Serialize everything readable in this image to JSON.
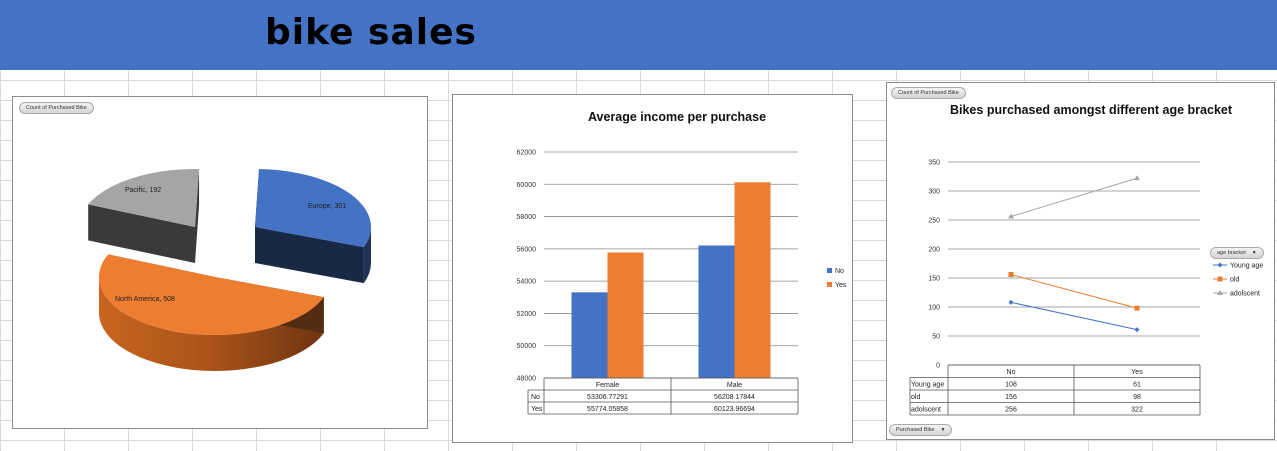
{
  "page": {
    "title": "bike sales"
  },
  "colors": {
    "blue": "#4472c4",
    "orange": "#ed7d31",
    "gray": "#a5a5a5"
  },
  "pie_panel": {
    "field_button": "Count of Purchased Bike"
  },
  "line_panel": {
    "field_button": "Count of Purchased Bike",
    "legend_button": "age bracket",
    "axis_button": "Purchased Bike"
  },
  "chart_data": [
    {
      "type": "pie",
      "title": "",
      "slices": [
        {
          "label": "Europe",
          "value": 301,
          "color": "#4472c4",
          "text": "Europe, 301"
        },
        {
          "label": "North America",
          "value": 508,
          "color": "#ed7d31",
          "text": "North America, 508"
        },
        {
          "label": "Pacific",
          "value": 192,
          "color": "#a5a5a5",
          "text": "Pacific, 192"
        }
      ]
    },
    {
      "type": "bar",
      "title": "Average income per purchase",
      "categories": [
        "Female",
        "Male"
      ],
      "series": [
        {
          "name": "No",
          "values": [
            53306.77291,
            56208.17844
          ],
          "labels": [
            "53306.77291",
            "56208.17844"
          ],
          "color": "#4472c4"
        },
        {
          "name": "Yes",
          "values": [
            55774.05858,
            60123.96694
          ],
          "labels": [
            "55774.05858",
            "60123.96694"
          ],
          "color": "#ed7d31"
        }
      ],
      "ylim": [
        48000,
        62000
      ],
      "yticks": [
        48000,
        50000,
        52000,
        54000,
        56000,
        58000,
        60000,
        62000
      ],
      "grid": true,
      "legend": "right",
      "data_table": true
    },
    {
      "type": "line",
      "title": "Bikes purchased amongst different age bracket",
      "categories": [
        "No",
        "Yes"
      ],
      "series": [
        {
          "name": "Young age",
          "values": [
            108,
            61
          ],
          "color": "#4472c4",
          "marker": "diamond"
        },
        {
          "name": "old",
          "values": [
            156,
            98
          ],
          "color": "#ed7d31",
          "marker": "square"
        },
        {
          "name": "adolscent",
          "values": [
            256,
            322
          ],
          "color": "#a5a5a5",
          "marker": "triangle"
        }
      ],
      "ylim": [
        0,
        350
      ],
      "yticks": [
        0,
        50,
        100,
        150,
        200,
        250,
        300,
        350
      ],
      "grid": true,
      "legend": "right",
      "data_table": true
    }
  ]
}
